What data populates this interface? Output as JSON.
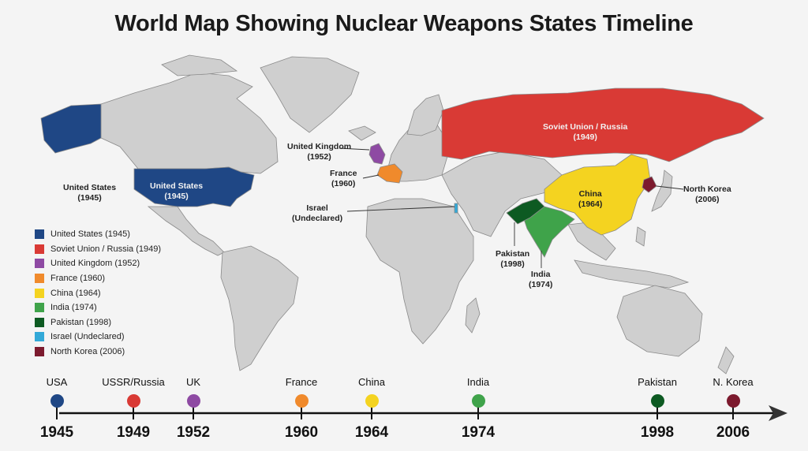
{
  "title": "World Map Showing Nuclear Weapons States Timeline",
  "colors": {
    "usa": "#1f4785",
    "russia": "#d93a35",
    "uk": "#8e4aa3",
    "france": "#f08a2c",
    "china": "#f4d320",
    "india": "#3fa34a",
    "pakistan": "#0d5a22",
    "israel": "#33a9d8",
    "nkorea": "#7c1a2e",
    "land": "#cfcfcf"
  },
  "map_labels": {
    "usa_outside": "United States\n(1945)",
    "usa_inside": "United States\n(1945)",
    "russia": "Soviet Union / Russia\n(1949)",
    "uk": "United Kingdom\n(1952)",
    "france": "France\n(1960)",
    "israel": "Israel\n(Undeclared)",
    "china": "China\n(1964)",
    "nkorea": "North Korea\n(2006)",
    "pakistan": "Pakistan\n(1998)",
    "india": "India\n(1974)"
  },
  "legend": [
    {
      "label": "United States (1945)",
      "color": "#1f4785"
    },
    {
      "label": "Soviet Union / Russia (1949)",
      "color": "#d93a35"
    },
    {
      "label": "United Kingdom (1952)",
      "color": "#8e4aa3"
    },
    {
      "label": "France (1960)",
      "color": "#f08a2c"
    },
    {
      "label": "China (1964)",
      "color": "#f4d320"
    },
    {
      "label": "India (1974)",
      "color": "#3fa34a"
    },
    {
      "label": "Pakistan (1998)",
      "color": "#0d5a22"
    },
    {
      "label": "Israel (Undeclared)",
      "color": "#33a9d8"
    },
    {
      "label": "North Korea (2006)",
      "color": "#7c1a2e"
    }
  ],
  "timeline": {
    "events": [
      {
        "name": "USA",
        "year": "1945",
        "color": "#1f4785"
      },
      {
        "name": "USSR/Russia",
        "year": "1949",
        "color": "#d93a35"
      },
      {
        "name": "UK",
        "year": "1952",
        "color": "#8e4aa3"
      },
      {
        "name": "France",
        "year": "1960",
        "color": "#f08a2c"
      },
      {
        "name": "China",
        "year": "1964",
        "color": "#f4d320"
      },
      {
        "name": "India",
        "year": "1974",
        "color": "#3fa34a"
      },
      {
        "name": "Pakistan",
        "year": "1998",
        "color": "#0d5a22"
      },
      {
        "name": "N. Korea",
        "year": "2006",
        "color": "#7c1a2e"
      }
    ]
  }
}
